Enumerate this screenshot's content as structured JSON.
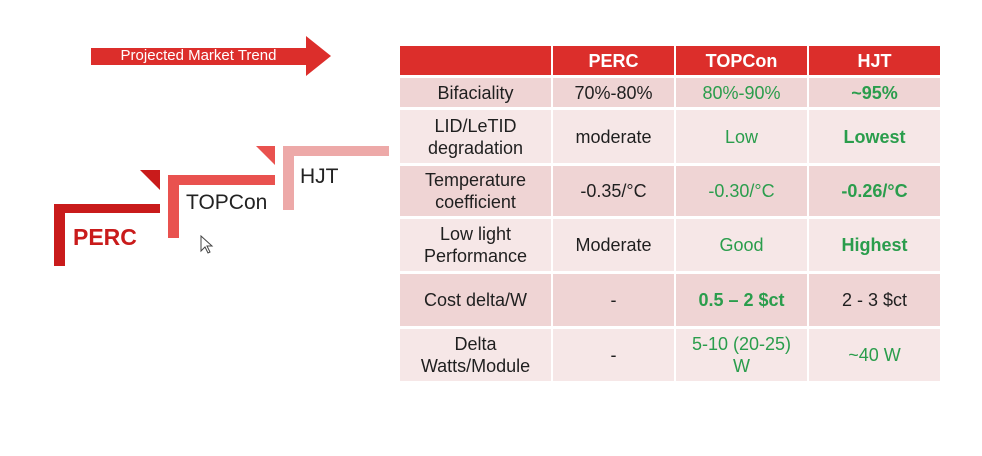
{
  "trend": {
    "label": "Projected Market Trend"
  },
  "steps": {
    "perc": "PERC",
    "topcon": "TOPCon",
    "hjt": "HJT"
  },
  "table": {
    "headers": [
      "",
      "PERC",
      "TOPCon",
      "HJT"
    ],
    "rows": [
      {
        "label": "Bifaciality",
        "perc": "70%-80%",
        "topcon": "80%-90%",
        "hjt": "~95%"
      },
      {
        "label_1": "LID/LeTID",
        "label_2": "degradation",
        "perc": "moderate",
        "topcon": "Low",
        "hjt": "Lowest"
      },
      {
        "label_1": "Temperature",
        "label_2": "coefficient",
        "perc": "-0.35/°C",
        "topcon": "-0.30/°C",
        "hjt": "-0.26/°C"
      },
      {
        "label_1": "Low light",
        "label_2": "Performance",
        "perc": "Moderate",
        "topcon": "Good",
        "hjt": "Highest"
      },
      {
        "label": "Cost delta/W",
        "perc": "-",
        "topcon": "0.5 – 2 $ct",
        "hjt": "2 - 3 $ct"
      },
      {
        "label_1": "Delta",
        "label_2": "Watts/Module",
        "perc": "-",
        "topcon_1": "5-10 (20-25)",
        "topcon_2": "W",
        "hjt": "~40 W"
      }
    ]
  },
  "colors": {
    "header_red": "#dc2e2b",
    "row_light": "#f6e7e7",
    "row_dark": "#efd4d4",
    "green": "#2a9d4c",
    "perc_red": "#c91b1b",
    "topcon_red": "#e9524f",
    "hjt_pink": "#eda9a8"
  },
  "icons": {
    "trend": "right-arrow-icon",
    "cursor": "mouse-pointer-icon"
  }
}
